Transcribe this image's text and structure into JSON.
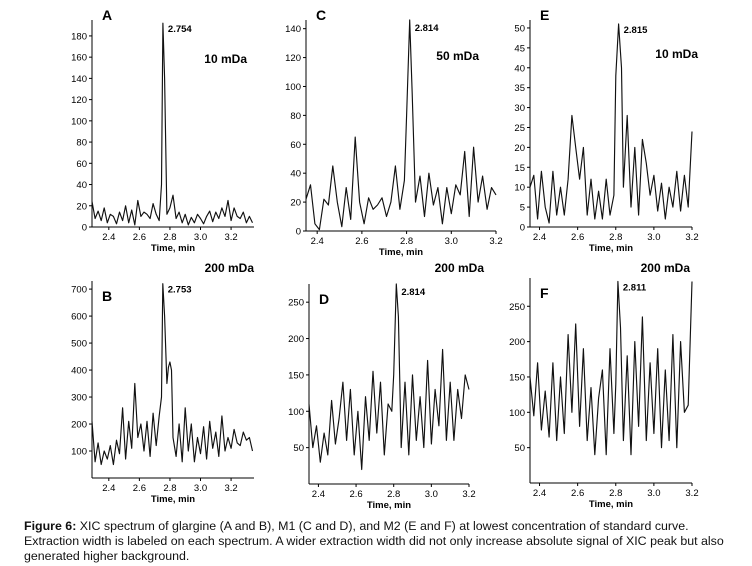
{
  "figure": {
    "caption_label": "Figure 6:",
    "caption_text": "XIC spectrum of glargine (A and B), M1 (C and D), and M2 (E and F) at lowest concentration of standard curve. Extraction width is labeled on each spectrum. A wider extraction width did not only increase absolute signal of XIC peak but also generated higher background."
  },
  "chart_data": [
    {
      "type": "line",
      "panel": "A",
      "extraction_width": "10 mDa",
      "peak_label": "2.754",
      "peak": [
        2.754,
        192
      ],
      "xlabel": "Time, min",
      "xlim": [
        2.29,
        3.35
      ],
      "xticks": [
        2.4,
        2.6,
        2.8,
        3.0,
        3.2
      ],
      "xticklabels": [
        "2.4",
        "2.6",
        "2.8",
        "3.0",
        "3.2"
      ],
      "ylim": [
        0,
        195
      ],
      "yticks": [
        0,
        20,
        40,
        60,
        80,
        100,
        120,
        140,
        160,
        180
      ],
      "x": [
        2.29,
        2.31,
        2.33,
        2.35,
        2.37,
        2.39,
        2.41,
        2.43,
        2.45,
        2.47,
        2.49,
        2.51,
        2.53,
        2.55,
        2.57,
        2.59,
        2.61,
        2.63,
        2.65,
        2.67,
        2.69,
        2.71,
        2.73,
        2.745,
        2.754,
        2.765,
        2.78,
        2.8,
        2.82,
        2.84,
        2.86,
        2.88,
        2.9,
        2.92,
        2.94,
        2.96,
        2.98,
        3.0,
        3.02,
        3.04,
        3.06,
        3.08,
        3.1,
        3.12,
        3.14,
        3.16,
        3.18,
        3.2,
        3.22,
        3.24,
        3.26,
        3.28,
        3.3,
        3.32,
        3.34
      ],
      "y": [
        24,
        8,
        15,
        6,
        18,
        4,
        12,
        10,
        3,
        14,
        6,
        20,
        4,
        16,
        2,
        25,
        10,
        14,
        12,
        8,
        22,
        12,
        6,
        40,
        192,
        140,
        12,
        18,
        30,
        8,
        14,
        4,
        12,
        2,
        9,
        4,
        12,
        8,
        3,
        10,
        15,
        5,
        14,
        8,
        18,
        10,
        25,
        6,
        18,
        10,
        8,
        14,
        4,
        10,
        4
      ]
    },
    {
      "type": "line",
      "panel": "B",
      "extraction_width": "200 mDa",
      "peak_label": "2.753",
      "peak": [
        2.753,
        720
      ],
      "xlabel": "Time, min",
      "xlim": [
        2.29,
        3.35
      ],
      "xticks": [
        2.4,
        2.6,
        2.8,
        3.0,
        3.2
      ],
      "xticklabels": [
        "2.4",
        "2.6",
        "2.8",
        "3.0",
        "3.2"
      ],
      "ylim": [
        0,
        730
      ],
      "yticks": [
        100,
        200,
        300,
        400,
        500,
        600,
        700
      ],
      "x": [
        2.29,
        2.31,
        2.33,
        2.35,
        2.37,
        2.39,
        2.41,
        2.43,
        2.45,
        2.47,
        2.49,
        2.51,
        2.53,
        2.55,
        2.57,
        2.59,
        2.61,
        2.63,
        2.65,
        2.67,
        2.69,
        2.71,
        2.73,
        2.745,
        2.753,
        2.765,
        2.78,
        2.79,
        2.8,
        2.81,
        2.82,
        2.84,
        2.86,
        2.88,
        2.9,
        2.92,
        2.94,
        2.96,
        2.98,
        3.0,
        3.02,
        3.04,
        3.06,
        3.08,
        3.1,
        3.12,
        3.14,
        3.16,
        3.18,
        3.2,
        3.22,
        3.24,
        3.26,
        3.28,
        3.3,
        3.32,
        3.34
      ],
      "y": [
        210,
        60,
        130,
        50,
        100,
        70,
        120,
        50,
        140,
        90,
        260,
        70,
        210,
        110,
        350,
        150,
        200,
        100,
        210,
        80,
        240,
        120,
        230,
        300,
        720,
        600,
        350,
        410,
        430,
        400,
        150,
        80,
        200,
        60,
        260,
        100,
        200,
        60,
        150,
        90,
        190,
        70,
        210,
        110,
        170,
        80,
        230,
        100,
        150,
        110,
        180,
        130,
        120,
        170,
        140,
        150,
        100
      ]
    },
    {
      "type": "line",
      "panel": "C",
      "extraction_width": "50 mDa",
      "peak_label": "2.814",
      "peak": [
        2.814,
        146
      ],
      "xlabel": "Time, min",
      "xlim": [
        2.35,
        3.2
      ],
      "xticks": [
        2.4,
        2.6,
        2.8,
        3.0,
        3.2
      ],
      "xticklabels": [
        "2.4",
        "2.6",
        "2.8",
        "3.0",
        "3.2"
      ],
      "ylim": [
        0,
        146
      ],
      "yticks": [
        0,
        20,
        40,
        60,
        80,
        100,
        120,
        140
      ],
      "x": [
        2.35,
        2.37,
        2.39,
        2.41,
        2.43,
        2.45,
        2.47,
        2.49,
        2.51,
        2.53,
        2.55,
        2.57,
        2.59,
        2.61,
        2.63,
        2.65,
        2.67,
        2.69,
        2.71,
        2.73,
        2.75,
        2.77,
        2.79,
        2.8,
        2.814,
        2.825,
        2.84,
        2.86,
        2.88,
        2.9,
        2.92,
        2.94,
        2.96,
        2.98,
        3.0,
        3.02,
        3.04,
        3.06,
        3.08,
        3.1,
        3.12,
        3.14,
        3.16,
        3.18,
        3.2
      ],
      "y": [
        22,
        32,
        5,
        1,
        22,
        18,
        45,
        20,
        3,
        30,
        8,
        65,
        20,
        5,
        23,
        15,
        18,
        23,
        10,
        20,
        45,
        15,
        35,
        80,
        146,
        95,
        20,
        38,
        10,
        40,
        18,
        30,
        5,
        30,
        12,
        32,
        25,
        55,
        10,
        58,
        20,
        38,
        15,
        30,
        25
      ]
    },
    {
      "type": "line",
      "panel": "D",
      "extraction_width": "200 mDa",
      "peak_label": "2.814",
      "peak": [
        2.814,
        275
      ],
      "xlabel": "Time, min",
      "xlim": [
        2.35,
        3.2
      ],
      "xticks": [
        2.4,
        2.6,
        2.8,
        3.0,
        3.2
      ],
      "xticklabels": [
        "2.4",
        "2.6",
        "2.8",
        "3.0",
        "3.2"
      ],
      "ylim": [
        0,
        275
      ],
      "yticks": [
        50,
        100,
        150,
        200,
        250
      ],
      "x": [
        2.35,
        2.37,
        2.39,
        2.41,
        2.43,
        2.45,
        2.47,
        2.49,
        2.51,
        2.53,
        2.55,
        2.57,
        2.59,
        2.61,
        2.63,
        2.65,
        2.67,
        2.69,
        2.71,
        2.73,
        2.75,
        2.77,
        2.79,
        2.8,
        2.814,
        2.825,
        2.84,
        2.86,
        2.88,
        2.9,
        2.92,
        2.94,
        2.96,
        2.98,
        3.0,
        3.02,
        3.04,
        3.06,
        3.08,
        3.1,
        3.12,
        3.14,
        3.16,
        3.18,
        3.2
      ],
      "y": [
        110,
        50,
        80,
        30,
        70,
        40,
        115,
        55,
        90,
        140,
        60,
        130,
        40,
        100,
        20,
        120,
        60,
        155,
        70,
        140,
        40,
        110,
        100,
        150,
        275,
        230,
        50,
        140,
        40,
        150,
        60,
        120,
        50,
        170,
        55,
        130,
        80,
        185,
        60,
        140,
        60,
        130,
        90,
        150,
        130
      ]
    },
    {
      "type": "line",
      "panel": "E",
      "extraction_width": "10 mDa",
      "peak_label": "2.815",
      "peak": [
        2.815,
        51
      ],
      "xlabel": "Time, min",
      "xlim": [
        2.35,
        3.2
      ],
      "xticks": [
        2.4,
        2.6,
        2.8,
        3.0,
        3.2
      ],
      "xticklabels": [
        "2.4",
        "2.6",
        "2.8",
        "3.0",
        "3.2"
      ],
      "ylim": [
        0,
        52
      ],
      "yticks": [
        0,
        5,
        10,
        15,
        20,
        25,
        30,
        35,
        40,
        45,
        50
      ],
      "x": [
        2.35,
        2.37,
        2.39,
        2.41,
        2.43,
        2.45,
        2.47,
        2.49,
        2.51,
        2.53,
        2.55,
        2.57,
        2.59,
        2.61,
        2.63,
        2.65,
        2.67,
        2.69,
        2.71,
        2.73,
        2.75,
        2.77,
        2.79,
        2.8,
        2.815,
        2.83,
        2.84,
        2.86,
        2.88,
        2.9,
        2.92,
        2.94,
        2.96,
        2.98,
        3.0,
        3.02,
        3.04,
        3.06,
        3.08,
        3.1,
        3.12,
        3.14,
        3.16,
        3.18,
        3.2
      ],
      "y": [
        10,
        13,
        2,
        14,
        5,
        1,
        14,
        3,
        10,
        3,
        12,
        28,
        20,
        12,
        20,
        3,
        12,
        2,
        9,
        2,
        12,
        3,
        8,
        38,
        51,
        40,
        10,
        28,
        5,
        20,
        3,
        22,
        16,
        8,
        13,
        4,
        11,
        2,
        10,
        5,
        14,
        4,
        13,
        5,
        24
      ]
    },
    {
      "type": "line",
      "panel": "F",
      "extraction_width": "200 mDa",
      "peak_label": "2.811",
      "peak": [
        2.811,
        285
      ],
      "xlabel": "Time, min",
      "xlim": [
        2.35,
        3.2
      ],
      "xticks": [
        2.4,
        2.6,
        2.8,
        3.0,
        3.2
      ],
      "xticklabels": [
        "2.4",
        "2.6",
        "2.8",
        "3.0",
        "3.2"
      ],
      "ylim": [
        0,
        290
      ],
      "yticks": [
        50,
        100,
        150,
        200,
        250
      ],
      "x": [
        2.35,
        2.37,
        2.39,
        2.41,
        2.43,
        2.45,
        2.47,
        2.49,
        2.51,
        2.53,
        2.55,
        2.57,
        2.59,
        2.61,
        2.63,
        2.65,
        2.67,
        2.69,
        2.71,
        2.73,
        2.75,
        2.77,
        2.79,
        2.8,
        2.811,
        2.825,
        2.84,
        2.86,
        2.88,
        2.9,
        2.92,
        2.94,
        2.96,
        2.98,
        3.0,
        3.02,
        3.04,
        3.06,
        3.08,
        3.1,
        3.12,
        3.14,
        3.16,
        3.18,
        3.2
      ],
      "y": [
        150,
        95,
        170,
        75,
        130,
        65,
        170,
        60,
        150,
        70,
        210,
        100,
        225,
        80,
        190,
        60,
        135,
        40,
        120,
        160,
        40,
        190,
        70,
        140,
        285,
        220,
        60,
        180,
        40,
        200,
        80,
        235,
        60,
        170,
        70,
        190,
        50,
        160,
        60,
        210,
        50,
        200,
        100,
        110,
        285
      ]
    }
  ]
}
